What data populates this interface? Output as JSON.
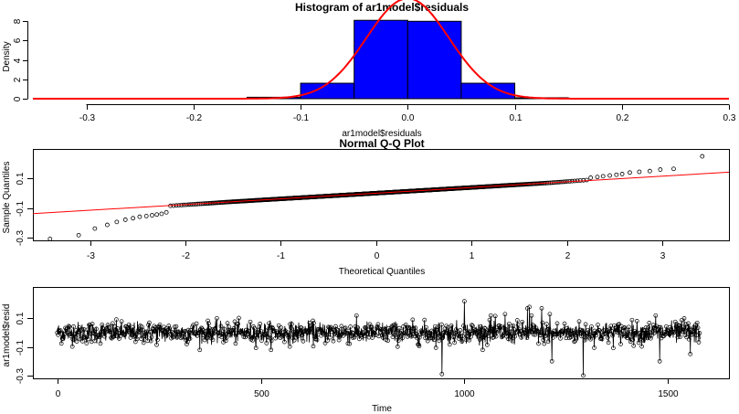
{
  "chart_data": [
    {
      "type": "bar",
      "title": "Histogram of ar1model$residuals",
      "xlabel": "ar1model$residuals",
      "ylabel": "Density",
      "xlim": [
        -0.35,
        0.3
      ],
      "ylim": [
        0,
        8.5
      ],
      "xticks": [
        -0.3,
        -0.2,
        -0.1,
        0.0,
        0.1,
        0.2,
        0.3
      ],
      "xtick_labels": [
        "-0.3",
        "-0.2",
        "-0.1",
        "0.0",
        "0.1",
        "0.2",
        "0.3"
      ],
      "yticks": [
        0,
        2,
        4,
        6,
        8
      ],
      "ytick_labels": [
        "0",
        "2",
        "4",
        "6",
        "8"
      ],
      "bins": [
        {
          "from": -0.15,
          "to": -0.1,
          "density": 0.15
        },
        {
          "from": -0.1,
          "to": -0.05,
          "density": 1.6
        },
        {
          "from": -0.05,
          "to": 0.0,
          "density": 8.1
        },
        {
          "from": 0.0,
          "to": 0.05,
          "density": 8.0
        },
        {
          "from": 0.05,
          "to": 0.1,
          "density": 1.6
        },
        {
          "from": 0.1,
          "to": 0.15,
          "density": 0.1
        }
      ],
      "bar_color": "#0000FF",
      "curve": {
        "type": "normal-density",
        "mean": 0.0,
        "sd": 0.0385,
        "color": "#FF0000"
      }
    },
    {
      "type": "scatter",
      "title": "Normal Q-Q Plot",
      "xlabel": "Theoretical Quantiles",
      "ylabel": "Sample Quantiles",
      "xlim": [
        -3.6,
        3.7
      ],
      "ylim": [
        -0.32,
        0.3
      ],
      "xticks": [
        -3,
        -2,
        -1,
        0,
        1,
        2,
        3
      ],
      "xtick_labels": [
        "-3",
        "-2",
        "-1",
        "0",
        "1",
        "2",
        "3"
      ],
      "yticks": [
        -0.3,
        -0.1,
        0.1
      ],
      "ytick_labels": [
        "-0.3",
        "-0.1",
        "0.1"
      ],
      "line": {
        "intercept": 0.0,
        "slope": 0.0385,
        "color": "#FF0000"
      },
      "points": {
        "count": 1580,
        "lower_tail": [
          [
            -3.42,
            -0.31
          ],
          [
            -3.12,
            -0.285
          ],
          [
            -2.95,
            -0.24
          ],
          [
            -2.82,
            -0.215
          ],
          [
            -2.72,
            -0.195
          ],
          [
            -2.63,
            -0.18
          ],
          [
            -2.55,
            -0.17
          ],
          [
            -2.48,
            -0.16
          ],
          [
            -2.41,
            -0.155
          ],
          [
            -2.35,
            -0.15
          ],
          [
            -2.3,
            -0.145
          ],
          [
            -2.25,
            -0.14
          ],
          [
            -2.2,
            -0.13
          ]
        ],
        "upper_tail": [
          [
            2.25,
            0.105
          ],
          [
            2.32,
            0.11
          ],
          [
            2.38,
            0.115
          ],
          [
            2.45,
            0.12
          ],
          [
            2.52,
            0.125
          ],
          [
            2.58,
            0.13
          ],
          [
            2.66,
            0.14
          ],
          [
            2.76,
            0.145
          ],
          [
            2.87,
            0.15
          ],
          [
            2.98,
            0.16
          ],
          [
            3.12,
            0.165
          ],
          [
            3.42,
            0.25
          ]
        ]
      }
    },
    {
      "type": "line",
      "xlabel": "Time",
      "ylabel": "ar1model$resid",
      "xlim": [
        -60,
        1650
      ],
      "ylim": [
        -0.32,
        0.32
      ],
      "xticks": [
        0,
        500,
        1000,
        1500
      ],
      "xtick_labels": [
        "0",
        "500",
        "1000",
        "1500"
      ],
      "yticks": [
        -0.3,
        -0.1,
        0.1
      ],
      "ytick_labels": [
        "-0.3",
        "-0.1",
        "0.1"
      ],
      "n": 1580,
      "series_marker": "open-circle",
      "series_color": "#000000",
      "spikes": [
        [
          0,
          0.0
        ],
        [
          945,
          -0.29
        ],
        [
          1000,
          0.22
        ],
        [
          1065,
          0.12
        ],
        [
          1100,
          0.13
        ],
        [
          1160,
          0.18
        ],
        [
          1165,
          0.12
        ],
        [
          1190,
          0.17
        ],
        [
          1210,
          0.13
        ],
        [
          1215,
          -0.2
        ],
        [
          1292,
          -0.3
        ],
        [
          1155,
          0.17
        ],
        [
          1480,
          -0.2
        ],
        [
          1555,
          -0.15
        ],
        [
          1470,
          0.12
        ],
        [
          1540,
          0.1
        ]
      ]
    }
  ]
}
